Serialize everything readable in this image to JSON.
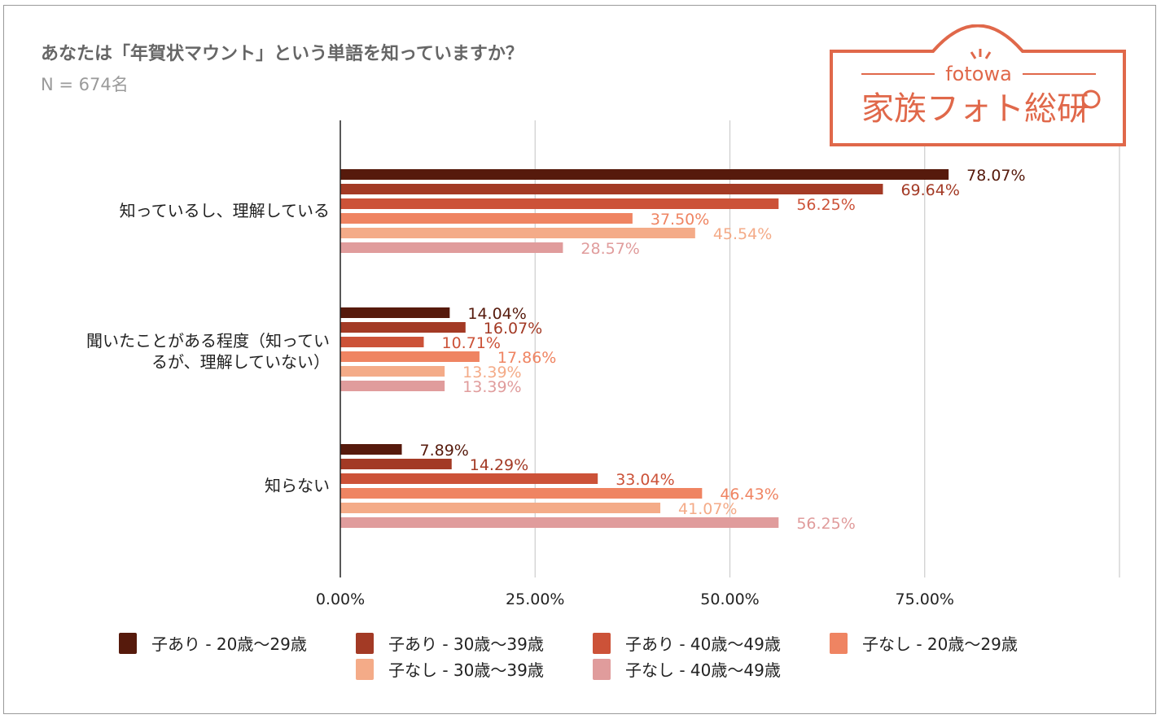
{
  "title": "あなたは「年賀状マウント」という単語を知っていますか？",
  "subtitle": "N = 674名",
  "logo": {
    "brand": "fotowa",
    "name": "家族フォト総研",
    "color": "#e0684a"
  },
  "chart_data": {
    "type": "bar",
    "orientation": "horizontal",
    "categories": [
      "知っているし、理解している",
      "聞いたことがある程度（知っているが、理解していない）",
      "知らない"
    ],
    "category_lines": [
      [
        "知っているし、理解している"
      ],
      [
        "聞いたことがある程度（知ってい",
        "るが、理解していない）"
      ],
      [
        "知らない"
      ]
    ],
    "xlim": [
      0,
      100
    ],
    "xticks": [
      "0.00%",
      "25.00%",
      "50.00%",
      "75.00%"
    ],
    "xtick_values": [
      0,
      25,
      50,
      75
    ],
    "grid": true,
    "legend_position": "bottom",
    "series": [
      {
        "name": "子あり - 20歳〜29歳",
        "color": "#561a0c",
        "label_color": "#561a0c",
        "values": [
          78.07,
          14.04,
          7.89
        ],
        "labels": [
          "78.07%",
          "14.04%",
          "7.89%"
        ]
      },
      {
        "name": "子あり - 30歳〜39歳",
        "color": "#a33a25",
        "label_color": "#a33a25",
        "values": [
          69.64,
          16.07,
          14.29
        ],
        "labels": [
          "69.64%",
          "16.07%",
          "14.29%"
        ]
      },
      {
        "name": "子あり - 40歳〜49歳",
        "color": "#cc5238",
        "label_color": "#cc5238",
        "values": [
          56.25,
          10.71,
          33.04
        ],
        "labels": [
          "56.25%",
          "10.71%",
          "33.04%"
        ]
      },
      {
        "name": "子なし - 20歳〜29歳",
        "color": "#ef8462",
        "label_color": "#ef8462",
        "values": [
          37.5,
          17.86,
          46.43
        ],
        "labels": [
          "37.50%",
          "17.86%",
          "46.43%"
        ]
      },
      {
        "name": "子なし - 30歳〜39歳",
        "color": "#f4ab88",
        "label_color": "#f4ab88",
        "values": [
          45.54,
          13.39,
          41.07
        ],
        "labels": [
          "45.54%",
          "13.39%",
          "41.07%"
        ]
      },
      {
        "name": "子なし - 40歳〜49歳",
        "color": "#e09c9c",
        "label_color": "#e09c9c",
        "values": [
          28.57,
          13.39,
          56.25
        ],
        "labels": [
          "28.57%",
          "13.39%",
          "56.25%"
        ]
      }
    ]
  }
}
